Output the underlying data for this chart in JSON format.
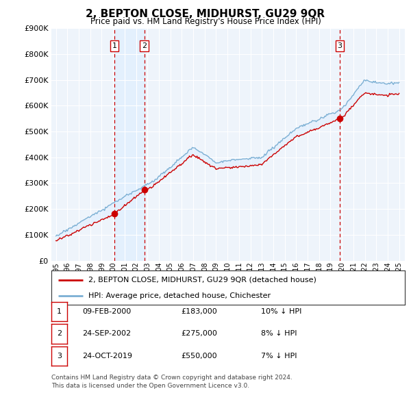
{
  "title": "2, BEPTON CLOSE, MIDHURST, GU29 9QR",
  "subtitle": "Price paid vs. HM Land Registry's House Price Index (HPI)",
  "legend_line1": "2, BEPTON CLOSE, MIDHURST, GU29 9QR (detached house)",
  "legend_line2": "HPI: Average price, detached house, Chichester",
  "footnote1": "Contains HM Land Registry data © Crown copyright and database right 2024.",
  "footnote2": "This data is licensed under the Open Government Licence v3.0.",
  "transactions": [
    {
      "num": 1,
      "date": "09-FEB-2000",
      "price": "£183,000",
      "pct": "10%",
      "year": 2000.11,
      "value": 183000
    },
    {
      "num": 2,
      "date": "24-SEP-2002",
      "price": "£275,000",
      "pct": "8%",
      "year": 2002.73,
      "value": 275000
    },
    {
      "num": 3,
      "date": "24-OCT-2019",
      "price": "£550,000",
      "pct": "7%",
      "year": 2019.81,
      "value": 550000
    }
  ],
  "ylim": [
    0,
    900000
  ],
  "yticks": [
    0,
    100000,
    200000,
    300000,
    400000,
    500000,
    600000,
    700000,
    800000,
    900000
  ],
  "color_red": "#cc0000",
  "color_blue": "#7bafd4",
  "color_vline": "#cc0000",
  "color_shade": "#ddeeff",
  "background_chart": "#eef4fb",
  "background_fig": "#ffffff"
}
